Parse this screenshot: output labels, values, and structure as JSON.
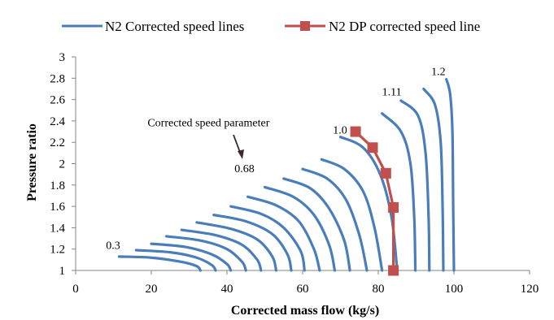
{
  "chart_data": {
    "type": "line",
    "title": "",
    "xlabel": "Corrected mass flow (kg/s)",
    "ylabel": "Pressure ratio",
    "xlim": [
      0,
      120
    ],
    "ylim": [
      1,
      3
    ],
    "xticks": [
      "0",
      "20",
      "40",
      "60",
      "80",
      "100",
      "120"
    ],
    "yticks": [
      "1",
      "1.2",
      "1.4",
      "1.6",
      "1.8",
      "2",
      "2.2",
      "2.4",
      "2.6",
      "2.8",
      "3"
    ],
    "grid": false,
    "legend_position": "top",
    "colors": {
      "speed_lines": "#4a7ebb",
      "dp_line": "#c0504d"
    },
    "series": [
      {
        "name": "N2 Corrected speed lines",
        "lines": [
          {
            "x": [
              11.5,
              20,
              28,
              32,
              33
            ],
            "y": [
              1.13,
              1.12,
              1.08,
              1.04,
              1.0
            ]
          },
          {
            "x": [
              16,
              25,
              32,
              36,
              37
            ],
            "y": [
              1.19,
              1.17,
              1.12,
              1.05,
              1.0
            ]
          },
          {
            "x": [
              20,
              29,
              36,
              40,
              41
            ],
            "y": [
              1.25,
              1.22,
              1.15,
              1.06,
              1.0
            ]
          },
          {
            "x": [
              24,
              33,
              40,
              44,
              45
            ],
            "y": [
              1.32,
              1.28,
              1.2,
              1.08,
              1.0
            ]
          },
          {
            "x": [
              28,
              37,
              44,
              48,
              49
            ],
            "y": [
              1.38,
              1.33,
              1.24,
              1.1,
              1.0
            ]
          },
          {
            "x": [
              32,
              41,
              48,
              52,
              53
            ],
            "y": [
              1.45,
              1.39,
              1.29,
              1.13,
              1.0
            ]
          },
          {
            "x": [
              36.5,
              45,
              52,
              56,
              57
            ],
            "y": [
              1.52,
              1.46,
              1.34,
              1.15,
              1.0
            ]
          },
          {
            "x": [
              41,
              49,
              55,
              59.5,
              60.5
            ],
            "y": [
              1.6,
              1.53,
              1.4,
              1.18,
              1.0
            ]
          },
          {
            "x": [
              45.5,
              53,
              59,
              63,
              64.5
            ],
            "y": [
              1.69,
              1.61,
              1.46,
              1.2,
              1.0
            ]
          },
          {
            "x": [
              50,
              57.5,
              63,
              67,
              68.5
            ],
            "y": [
              1.78,
              1.69,
              1.52,
              1.24,
              1.0
            ]
          },
          {
            "x": [
              55,
              62,
              67,
              71,
              72.5
            ],
            "y": [
              1.86,
              1.77,
              1.58,
              1.28,
              1.0
            ]
          },
          {
            "x": [
              60,
              66.5,
              71.5,
              75,
              77
            ],
            "y": [
              1.95,
              1.86,
              1.66,
              1.33,
              1.0
            ]
          },
          {
            "x": [
              65,
              71,
              76,
              79,
              81
            ],
            "y": [
              2.04,
              1.95,
              1.74,
              1.4,
              1.0
            ]
          },
          {
            "x": [
              70,
              76,
              80.5,
              83.5,
              85
            ],
            "y": [
              2.25,
              2.15,
              1.9,
              1.5,
              1.0
            ]
          },
          {
            "x": [
              81,
              86,
              88.5,
              89.5,
              89.8
            ],
            "y": [
              2.47,
              2.3,
              2.0,
              1.5,
              1.0
            ]
          },
          {
            "x": [
              86,
              90.5,
              92.5,
              93.3,
              93.5
            ],
            "y": [
              2.59,
              2.45,
              2.1,
              1.5,
              1.0
            ]
          },
          {
            "x": [
              92,
              95,
              96.5,
              97,
              97.2
            ],
            "y": [
              2.7,
              2.55,
              2.2,
              1.6,
              1.0
            ]
          },
          {
            "x": [
              98,
              99,
              99.6,
              99.8,
              100
            ],
            "y": [
              2.79,
              2.65,
              2.3,
              1.6,
              1.0
            ]
          }
        ]
      },
      {
        "name": "N2 DP corrected speed line",
        "x": [
          74,
          78.5,
          82,
          84,
          84
        ],
        "y": [
          2.3,
          2.15,
          1.91,
          1.59,
          1.0
        ]
      }
    ],
    "annotations": [
      {
        "text": "0.3",
        "x": 8,
        "y": 1.2
      },
      {
        "text": "0.68",
        "x": 42,
        "y": 1.92
      },
      {
        "text": "1.0",
        "x": 68,
        "y": 2.28
      },
      {
        "text": "1.11",
        "x": 81,
        "y": 2.64
      },
      {
        "text": "1.2",
        "x": 94,
        "y": 2.83
      },
      {
        "text": "Corrected speed parameter",
        "x": 19,
        "y": 2.35
      }
    ]
  }
}
